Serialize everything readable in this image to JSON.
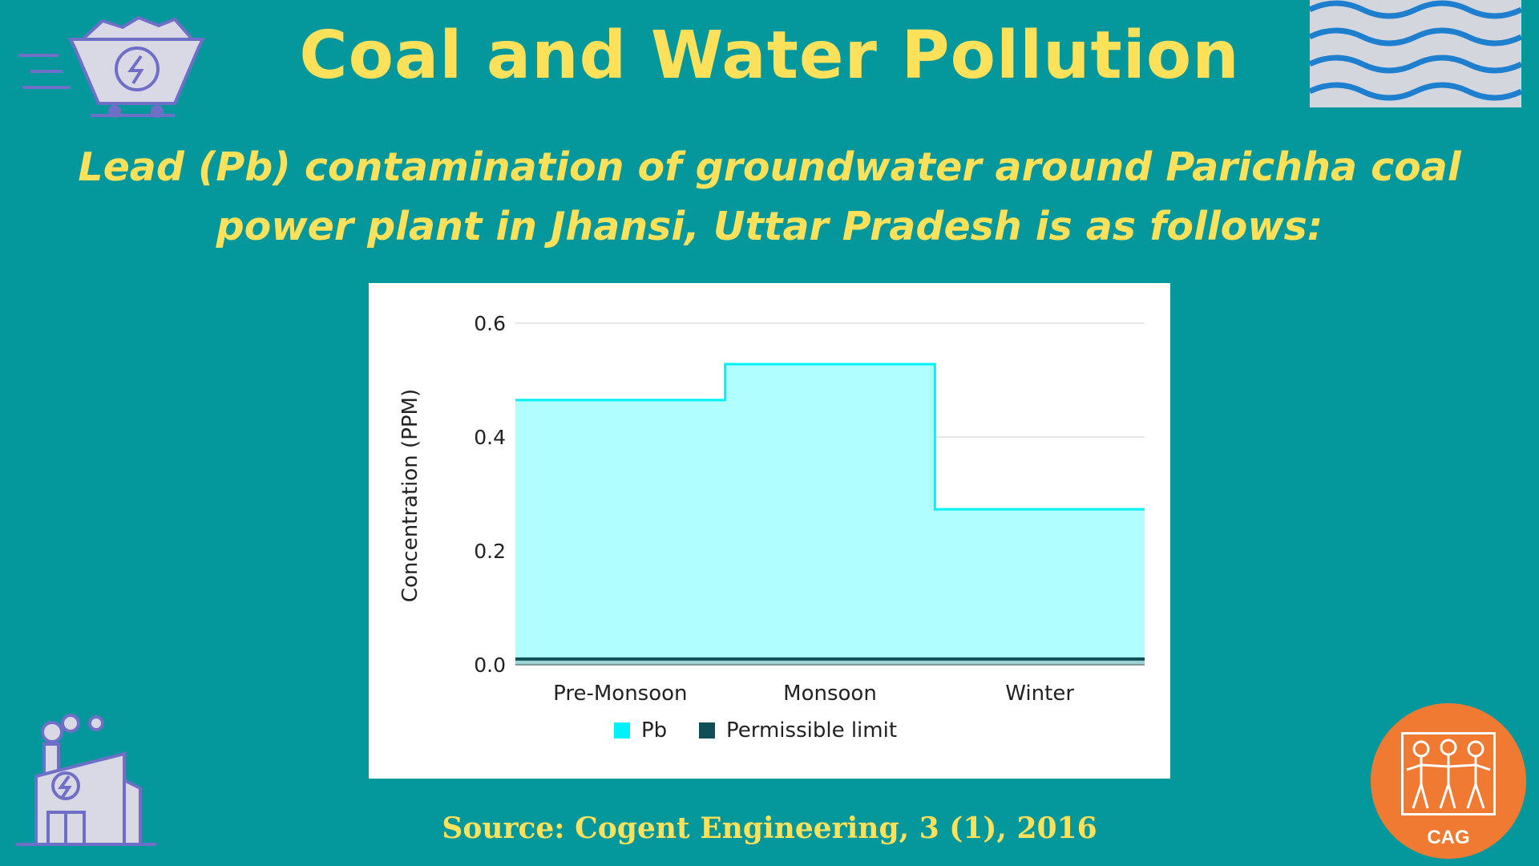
{
  "title": "Coal and Water Pollution",
  "subtitle": "Lead (Pb) contamination of groundwater around Parichha coal power plant in Jhansi, Uttar Pradesh is as follows:",
  "source": "Source: Cogent Engineering, 3 (1), 2016",
  "logo": {
    "text": "CAG",
    "color": "#f07a32"
  },
  "icons": [
    "coal-cart-icon",
    "water-waves-icon",
    "power-plant-icon",
    "cag-logo"
  ],
  "colors": {
    "background": "#04979b",
    "accent": "#fde15b",
    "pb_fill": "#b0feff",
    "pb_line": "#00f2f8",
    "limit": "#0f4f56"
  },
  "chart_data": {
    "type": "area",
    "categories": [
      "Pre-Monsoon",
      "Monsoon",
      "Winter"
    ],
    "series": [
      {
        "name": "Pb",
        "values": [
          0.465,
          0.528,
          0.273
        ],
        "color": "#00f2f8",
        "fill": "#b0feff",
        "step": true
      },
      {
        "name": "Permissible limit",
        "values": [
          0.01,
          0.01,
          0.01
        ],
        "color": "#0f4f56"
      }
    ],
    "title": "",
    "xlabel": "",
    "ylabel": "Concentration (PPM)",
    "ylim": [
      0,
      0.6
    ],
    "yticks": [
      "0.0",
      "0.2",
      "0.4",
      "0.6"
    ],
    "grid": true,
    "legend": "bottom"
  }
}
